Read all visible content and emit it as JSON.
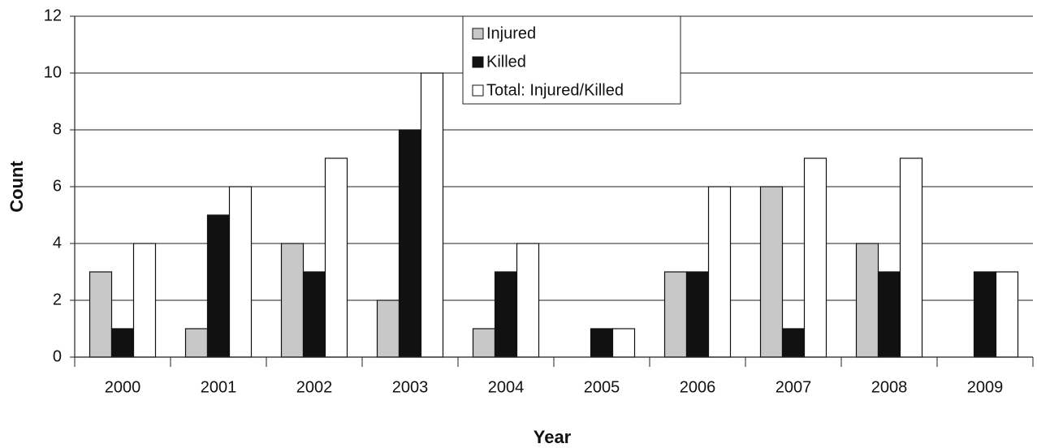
{
  "chart_data": {
    "type": "bar",
    "x_label": "Year",
    "y_label": "Count",
    "categories": [
      "2000",
      "2001",
      "2002",
      "2003",
      "2004",
      "2005",
      "2006",
      "2007",
      "2008",
      "2009"
    ],
    "series": [
      {
        "name": "Injured",
        "color": "#c8c8c8",
        "values": [
          3,
          1,
          4,
          2,
          1,
          0,
          3,
          6,
          4,
          0
        ]
      },
      {
        "name": "Killed",
        "color": "#111111",
        "values": [
          1,
          5,
          3,
          8,
          3,
          1,
          3,
          1,
          3,
          3
        ]
      },
      {
        "name": "Total: Injured/Killed",
        "color": "#ffffff",
        "values": [
          4,
          6,
          7,
          10,
          4,
          1,
          6,
          7,
          7,
          3
        ]
      }
    ],
    "ylim": [
      0,
      12
    ],
    "yticks": [
      0,
      2,
      4,
      6,
      8,
      10,
      12
    ],
    "grid": true,
    "legend": "top"
  }
}
